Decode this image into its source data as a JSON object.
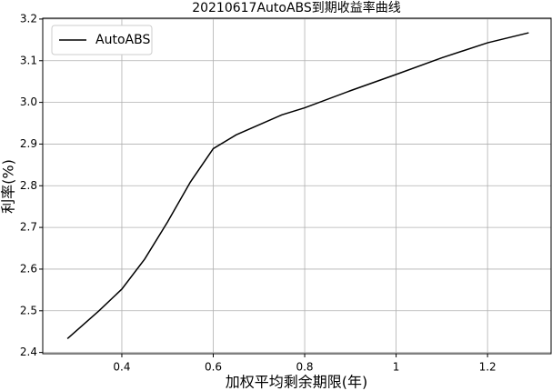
{
  "chart_data": {
    "type": "line",
    "title": "20210617AutoABS到期收益率曲线",
    "x_label": "加权平均剩余期限(年)",
    "y_label": "利率(%)",
    "x": [
      0.281,
      0.35,
      0.4,
      0.45,
      0.5,
      0.55,
      0.6,
      0.65,
      0.7,
      0.75,
      0.8,
      0.9,
      1.0,
      1.1,
      1.2,
      1.29
    ],
    "series": [
      {
        "name": "AutoABS",
        "color": "#000000",
        "values": [
          2.433,
          2.5,
          2.552,
          2.624,
          2.713,
          2.809,
          2.889,
          2.922,
          2.946,
          2.97,
          2.987,
          3.028,
          3.067,
          3.107,
          3.143,
          3.167
        ]
      }
    ],
    "xlim": [
      0.227,
      1.339
    ],
    "ylim": [
      2.397,
      3.202
    ],
    "xticks": [
      0.4,
      0.6,
      0.8,
      1.0,
      1.2
    ],
    "yticks": [
      2.4,
      2.5,
      2.6,
      2.7,
      2.8,
      2.9,
      {
        "value": 3,
        "label": "3.0"
      },
      3.1,
      3.2
    ],
    "grid": true,
    "legend": "upper-left"
  }
}
